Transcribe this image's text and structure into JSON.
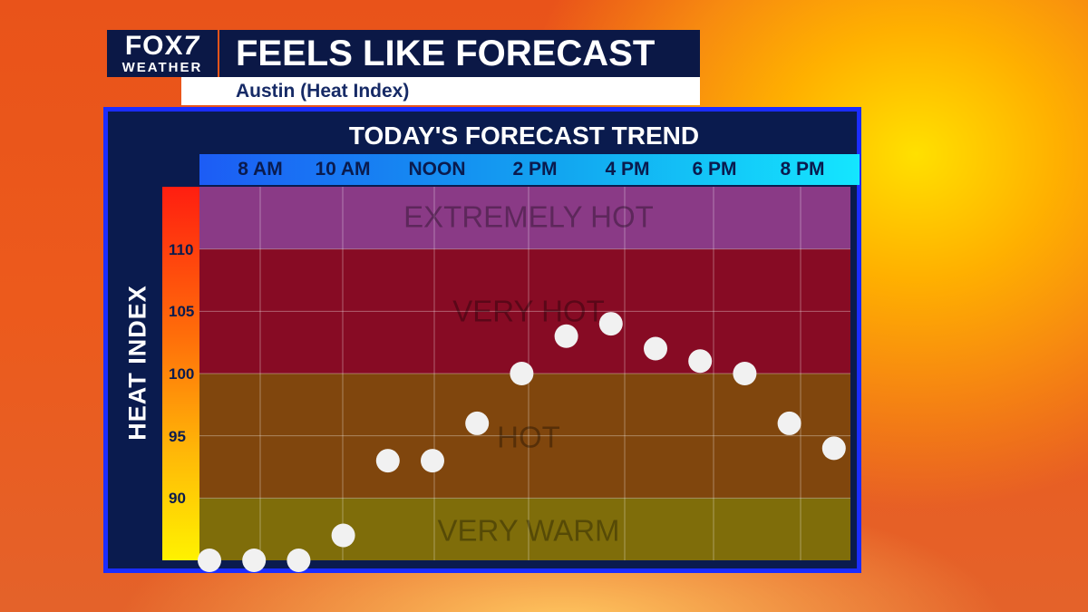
{
  "header": {
    "logo_brand": "FOX 7",
    "logo_brand_main": "FOX",
    "logo_brand_number": "7",
    "logo_sub": "WEATHER",
    "title": "FEELS LIKE FORECAST",
    "subtitle": "Austin (Heat Index)"
  },
  "chart_data": {
    "type": "scatter",
    "title": "TODAY'S FORECAST TREND",
    "ylabel": "HEAT INDEX",
    "xlabel": "",
    "x_tick_labels": [
      "8 AM",
      "10 AM",
      "NOON",
      "2 PM",
      "4 PM",
      "6 PM",
      "8 PM"
    ],
    "y_ticks": [
      90,
      95,
      100,
      105,
      110
    ],
    "ylim": [
      85,
      115
    ],
    "grid": true,
    "series": [
      {
        "points": [
          {
            "hour": 7.5,
            "value": 85
          },
          {
            "hour": 8.5,
            "value": 85
          },
          {
            "hour": 9.5,
            "value": 85
          },
          {
            "hour": 10.5,
            "value": 87
          },
          {
            "hour": 11.5,
            "value": 93
          },
          {
            "hour": 12.5,
            "value": 93
          },
          {
            "hour": 13.5,
            "value": 96
          },
          {
            "hour": 14.5,
            "value": 100
          },
          {
            "hour": 15.5,
            "value": 103
          },
          {
            "hour": 16.5,
            "value": 104
          },
          {
            "hour": 17.5,
            "value": 102
          },
          {
            "hour": 18.5,
            "value": 101
          },
          {
            "hour": 19.5,
            "value": 100
          },
          {
            "hour": 20.5,
            "value": 96
          },
          {
            "hour": 21.5,
            "value": 94
          }
        ]
      }
    ],
    "zones": [
      {
        "label": "EXTREMELY HOT",
        "from": 110,
        "to": 115,
        "color": "#8a3a86"
      },
      {
        "label": "VERY HOT",
        "from": 100,
        "to": 110,
        "color": "#870b24"
      },
      {
        "label": "HOT",
        "from": 90,
        "to": 100,
        "color": "#80460d"
      },
      {
        "label": "VERY WARM",
        "from": 85,
        "to": 90,
        "color": "#7f6d0a"
      }
    ],
    "colors": {
      "point": "#f1f1f1",
      "panel": "#0a1b4e",
      "border": "#1b2dff"
    }
  }
}
